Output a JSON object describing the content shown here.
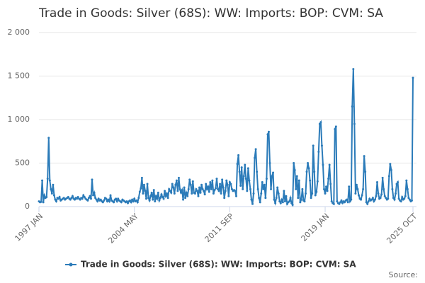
{
  "chart_data": {
    "type": "line",
    "title": "Trade in Goods: Silver (68S): WW: Imports: BOP: CVM: SA",
    "source": "Source:",
    "categories": [
      "1997 JAN",
      null,
      null,
      null,
      null,
      null,
      null,
      null,
      null,
      null,
      null,
      null,
      null,
      null,
      null,
      null,
      null,
      null,
      null,
      null,
      null,
      null,
      null,
      null,
      null,
      null,
      null,
      null,
      null,
      null,
      null,
      null,
      null,
      null,
      null,
      null,
      null,
      null,
      null,
      null,
      null,
      null,
      null,
      null,
      null,
      null,
      null,
      null,
      null,
      null,
      null,
      null,
      null,
      null,
      null,
      null,
      null,
      null,
      null,
      null,
      null,
      null,
      null,
      null,
      null,
      null,
      null,
      null,
      null,
      null,
      null,
      null,
      null,
      null,
      null,
      null,
      null,
      null,
      null,
      null,
      null,
      null,
      null,
      null,
      null,
      null,
      null,
      null,
      "2004 MAY",
      null,
      null,
      null,
      null,
      null,
      null,
      null,
      null,
      null,
      null,
      null,
      null,
      null,
      null,
      null,
      null,
      null,
      null,
      null,
      null,
      null,
      null,
      null,
      null,
      null,
      null,
      null,
      null,
      null,
      null,
      null,
      null,
      null,
      null,
      null,
      null,
      null,
      null,
      null,
      null,
      null,
      null,
      null,
      null,
      null,
      null,
      null,
      null,
      null,
      null,
      null,
      null,
      null,
      null,
      null,
      null,
      null,
      null,
      null,
      null,
      null,
      null,
      null,
      null,
      null,
      null,
      null,
      null,
      null,
      null,
      null,
      null,
      null,
      null,
      null,
      null,
      null,
      null,
      null,
      null,
      null,
      null,
      null,
      null,
      null,
      null,
      null,
      "2011 SEP",
      null,
      null,
      null,
      null,
      null,
      null,
      null,
      null,
      null,
      null,
      null,
      null,
      null,
      null,
      null,
      null,
      null,
      null,
      null,
      null,
      null,
      null,
      null,
      null,
      null,
      null,
      null,
      null,
      null,
      null,
      null,
      null,
      null,
      null,
      null,
      null,
      null,
      null,
      null,
      null,
      null,
      null,
      null,
      null,
      null,
      null,
      null,
      null,
      null,
      null,
      null,
      null,
      null,
      null,
      null,
      null,
      null,
      null,
      null,
      null,
      null,
      null,
      null,
      null,
      null,
      null,
      null,
      null,
      null,
      null,
      null,
      null,
      null,
      null,
      null,
      null,
      null,
      null,
      null,
      null,
      null,
      null,
      null,
      null,
      null,
      null,
      null,
      "2019 JAN",
      null,
      null,
      null,
      null,
      null,
      null,
      null,
      null,
      null,
      null,
      null,
      null,
      null,
      null,
      null,
      null,
      null,
      null,
      null,
      null,
      null,
      null,
      null,
      null,
      null,
      null,
      null,
      null,
      null,
      null,
      null,
      null,
      null,
      null,
      null,
      null,
      null,
      null,
      null,
      null,
      null,
      null,
      null,
      null,
      null,
      null,
      null,
      null,
      null,
      null,
      null,
      null,
      null,
      null,
      null,
      null,
      null,
      null,
      null,
      null,
      null,
      null,
      null,
      null,
      null,
      null,
      null,
      null,
      null,
      null,
      null,
      null,
      null,
      null,
      null,
      null,
      null,
      null,
      null,
      null,
      "2025 OCT"
    ],
    "series": [
      {
        "name": "Trade in Goods: Silver (68S): WW: Imports: BOP: CVM: SA",
        "color": "#2b7bb9",
        "values": [
          60,
          50,
          55,
          300,
          50,
          130,
          100,
          110,
          320,
          790,
          300,
          200,
          150,
          250,
          130,
          80,
          60,
          100,
          90,
          110,
          70,
          80,
          90,
          100,
          80,
          90,
          100,
          110,
          90,
          80,
          100,
          120,
          90,
          80,
          100,
          90,
          110,
          90,
          80,
          100,
          90,
          130,
          110,
          90,
          80,
          70,
          100,
          120,
          90,
          310,
          130,
          160,
          100,
          80,
          60,
          90,
          70,
          80,
          60,
          50,
          70,
          100,
          90,
          60,
          80,
          60,
          130,
          70,
          60,
          50,
          80,
          90,
          60,
          90,
          70,
          60,
          50,
          80,
          70,
          60,
          50,
          60,
          40,
          60,
          70,
          50,
          80,
          60,
          90,
          60,
          70,
          50,
          100,
          170,
          210,
          330,
          150,
          250,
          180,
          90,
          260,
          100,
          70,
          120,
          160,
          80,
          190,
          60,
          120,
          90,
          160,
          70,
          100,
          140,
          110,
          90,
          180,
          120,
          150,
          100,
          200,
          180,
          160,
          260,
          220,
          150,
          250,
          300,
          180,
          330,
          200,
          160,
          190,
          80,
          220,
          100,
          160,
          120,
          200,
          310,
          250,
          150,
          290,
          160,
          150,
          200,
          180,
          120,
          220,
          160,
          250,
          200,
          180,
          140,
          260,
          200,
          230,
          170,
          280,
          200,
          300,
          150,
          190,
          210,
          320,
          200,
          180,
          260,
          150,
          310,
          220,
          100,
          180,
          300,
          250,
          120,
          280,
          260,
          200,
          180,
          190,
          180,
          120,
          490,
          590,
          400,
          240,
          450,
          200,
          350,
          480,
          320,
          180,
          440,
          300,
          200,
          80,
          30,
          150,
          560,
          660,
          400,
          200,
          100,
          50,
          150,
          280,
          200,
          250,
          100,
          320,
          830,
          860,
          500,
          200,
          350,
          390,
          80,
          40,
          100,
          220,
          150,
          60,
          40,
          80,
          50,
          180,
          60,
          120,
          30,
          50,
          60,
          100,
          40,
          20,
          500,
          420,
          200,
          350,
          100,
          300,
          50,
          80,
          200,
          70,
          60,
          150,
          400,
          500,
          440,
          300,
          100,
          150,
          700,
          400,
          130,
          170,
          290,
          630,
          950,
          970,
          700,
          480,
          200,
          150,
          230,
          180,
          320,
          480,
          260,
          60,
          40,
          30,
          890,
          920,
          60,
          40,
          30,
          50,
          70,
          40,
          60,
          50,
          70,
          80,
          50,
          230,
          60,
          80,
          1150,
          1580,
          950,
          150,
          250,
          200,
          130,
          90,
          80,
          130,
          200,
          580,
          400,
          50,
          30,
          60,
          90,
          70,
          80,
          100,
          60,
          80,
          120,
          280,
          150,
          90,
          100,
          140,
          330,
          200,
          120,
          100,
          80,
          90,
          350,
          490,
          420,
          200,
          100,
          80,
          150,
          260,
          280,
          90,
          70,
          60,
          110,
          80,
          90,
          120,
          300,
          200,
          100,
          80,
          60,
          70,
          1480
        ]
      }
    ],
    "ylim": [
      0,
      2000
    ],
    "yticks": [
      0,
      500,
      {
        "value": 1000,
        "label": "1 000"
      },
      {
        "value": 1500,
        "label": "1 500"
      },
      {
        "value": 2000,
        "label": "2 000"
      }
    ],
    "grid": true,
    "legend": "bottom"
  }
}
